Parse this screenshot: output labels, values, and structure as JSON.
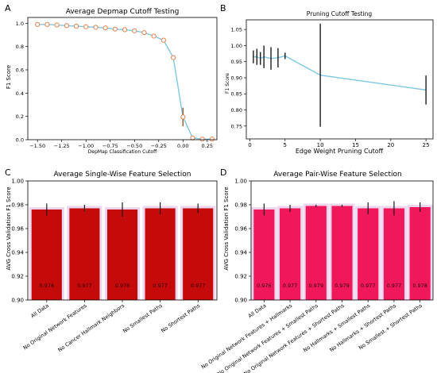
{
  "chart_data": [
    {
      "panel": "A",
      "type": "line",
      "title": "Average Depmap Cutoff Testing",
      "xlabel": "DepMap Classification Cutoff",
      "ylabel": "F1 Score",
      "xlim": [
        -1.6,
        0.35
      ],
      "ylim": [
        0.0,
        1.05
      ],
      "xticks": [
        -1.5,
        -1.25,
        -1.0,
        -0.75,
        -0.5,
        -0.25,
        0.0,
        0.25
      ],
      "xtick_labels": [
        "−1.50",
        "−1.25",
        "−1.00",
        "−0.75",
        "−0.50",
        "−0.25",
        "0.00",
        "0.25"
      ],
      "yticks": [
        0.0,
        0.2,
        0.4,
        0.6,
        0.8,
        1.0
      ],
      "ytick_labels": [
        "0.0",
        "0.2",
        "0.4",
        "0.6",
        "0.8",
        "1.0"
      ],
      "series": [
        {
          "x": [
            -1.5,
            -1.4,
            -1.3,
            -1.2,
            -1.1,
            -1.0,
            -0.9,
            -0.8,
            -0.7,
            -0.6,
            -0.5,
            -0.4,
            -0.3,
            -0.2,
            -0.1,
            0.0,
            0.1,
            0.2,
            0.3
          ],
          "y": [
            0.99,
            0.99,
            0.985,
            0.98,
            0.975,
            0.97,
            0.965,
            0.96,
            0.95,
            0.945,
            0.935,
            0.92,
            0.89,
            0.855,
            0.705,
            0.195,
            0.015,
            0.005,
            0.005
          ],
          "err": [
            0,
            0,
            0,
            0,
            0,
            0,
            0,
            0,
            0,
            0,
            0,
            0,
            0,
            0,
            0.015,
            0.08,
            0,
            0,
            0
          ]
        }
      ],
      "colors": {
        "line": "#7ec8e3",
        "marker_edge": "#e8804a",
        "marker_fill": "#ffffff",
        "error": "#9a5a2a"
      }
    },
    {
      "panel": "B",
      "type": "line",
      "title": "Pruning Cutoff Testing",
      "xlabel": "Edge Weight Pruning Cutoff",
      "ylabel": "F1 Score",
      "xlim": [
        -0.5,
        26
      ],
      "ylim": [
        0.71,
        1.08
      ],
      "xticks": [
        0,
        5,
        10,
        15,
        20,
        25
      ],
      "xtick_labels": [
        "0",
        "5",
        "10",
        "15",
        "20",
        "25"
      ],
      "yticks": [
        0.75,
        0.8,
        0.85,
        0.9,
        0.95,
        1.0,
        1.05
      ],
      "ytick_labels": [
        "0.75",
        "0.80",
        "0.85",
        "0.90",
        "0.95",
        "1.00",
        "1.05"
      ],
      "series": [
        {
          "x": [
            0.5,
            1,
            1.5,
            2,
            3,
            4,
            5,
            10,
            25
          ],
          "y": [
            0.965,
            0.965,
            0.96,
            0.965,
            0.96,
            0.962,
            0.968,
            0.908,
            0.862
          ],
          "err": [
            0.02,
            0.025,
            0.02,
            0.035,
            0.035,
            0.03,
            0.01,
            0.16,
            0.045
          ]
        }
      ],
      "colors": {
        "line": "#7ec8e3",
        "error": "#1a1a1a"
      }
    },
    {
      "panel": "C",
      "type": "bar",
      "title": "Average Single-Wise Feature Selection",
      "ylabel": "AVG Cross Validation F1 Score",
      "ylim": [
        0.9,
        1.0
      ],
      "yticks": [
        0.9,
        0.92,
        0.94,
        0.96,
        0.98,
        1.0
      ],
      "ytick_labels": [
        "0.90",
        "0.92",
        "0.94",
        "0.96",
        "0.98",
        "1.00"
      ],
      "categories": [
        "All Data",
        "No Original Network Features",
        "No Cancer Hallmark Neighbors",
        "No Smallest Paths",
        "No Shortest Paths"
      ],
      "values": [
        0.976,
        0.977,
        0.976,
        0.977,
        0.977
      ],
      "err": [
        0.005,
        0.003,
        0.006,
        0.005,
        0.004
      ],
      "value_labels": [
        "0.976",
        "0.977",
        "0.976",
        "0.977",
        "0.977"
      ],
      "colors": {
        "bar": "#c40a0a",
        "halo": "#eed6ee",
        "error": "#1a1a1a"
      }
    },
    {
      "panel": "D",
      "type": "bar",
      "title": "Average Pair-Wise Feature Selection",
      "ylabel": "AVG Cross Validation F1 Score",
      "ylim": [
        0.9,
        1.0
      ],
      "yticks": [
        0.9,
        0.92,
        0.94,
        0.96,
        0.98,
        1.0
      ],
      "ytick_labels": [
        "0.90",
        "0.92",
        "0.94",
        "0.96",
        "0.98",
        "1.00"
      ],
      "categories": [
        "All Data",
        "No Original Network Features + Hallmarks",
        "No Original Network Features + Smallest Paths",
        "No Original Network Features + Shortest Paths",
        "No Hallmarks + Smallest Paths",
        "No Hallmarks + Shortest Paths",
        "No Smallest + Shortest Paths"
      ],
      "values": [
        0.976,
        0.977,
        0.979,
        0.979,
        0.977,
        0.977,
        0.978
      ],
      "err": [
        0.005,
        0.003,
        0.001,
        0.001,
        0.005,
        0.006,
        0.004
      ],
      "value_labels": [
        "0.976",
        "0.977",
        "0.979",
        "0.979",
        "0.977",
        "0.977",
        "0.978"
      ],
      "colors": {
        "bar": "#f0185a",
        "halo": "#eed6ee",
        "error": "#1a1a1a"
      }
    }
  ]
}
